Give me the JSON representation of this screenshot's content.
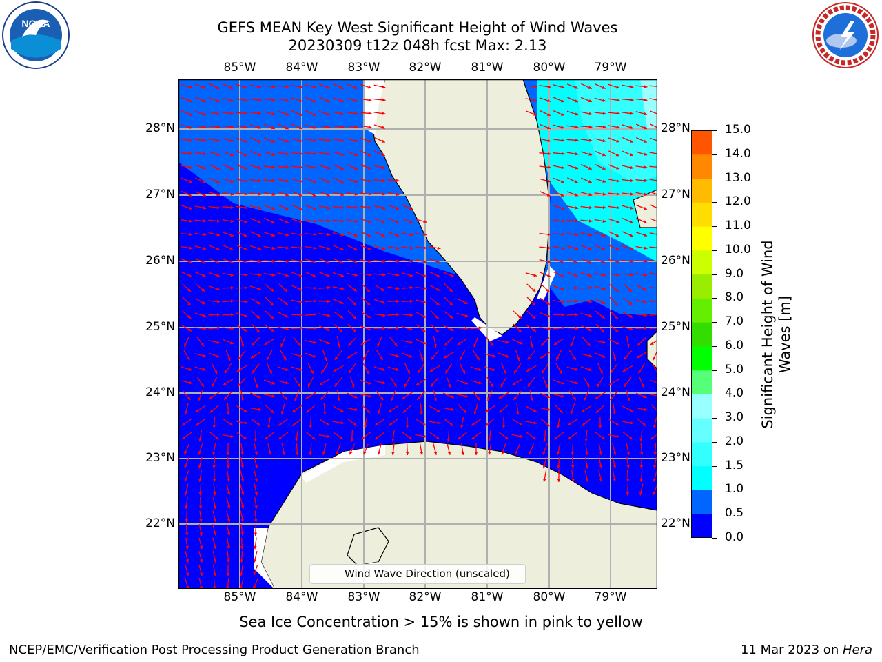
{
  "title_line1": "GEFS MEAN Key West Significant Height of Wind Waves",
  "title_line2": "20230309 t12z 048h fcst   Max: 2.13",
  "lon_labels": [
    "85°W",
    "84°W",
    "83°W",
    "82°W",
    "81°W",
    "80°W",
    "79°W"
  ],
  "lat_labels": [
    "28°N",
    "27°N",
    "26°N",
    "25°N",
    "24°N",
    "23°N",
    "22°N"
  ],
  "colorbar": {
    "label_line1": "Significant Height of Wind",
    "label_line2": "Waves [m]",
    "ticks": [
      "15.0",
      "14.0",
      "13.0",
      "12.0",
      "11.0",
      "10.0",
      "9.0",
      "8.0",
      "7.0",
      "6.0",
      "5.0",
      "4.0",
      "3.0",
      "2.0",
      "1.5",
      "1.0",
      "0.5",
      "0.0"
    ],
    "colors": [
      "#0000ff",
      "#0066ff",
      "#00ffff",
      "#33ffff",
      "#66ffff",
      "#99ffff",
      "#55ff77",
      "#00ff00",
      "#33dd00",
      "#66ee00",
      "#99ee00",
      "#ccff00",
      "#ffff00",
      "#ffdd00",
      "#ffbb00",
      "#ff8800",
      "#ff5500",
      "#ff2200",
      "#ff0000"
    ]
  },
  "colors": {
    "land": "#eeeedc",
    "arrow": "#ff0000",
    "grid": "#b0b0b0"
  },
  "legend_label": "Wind Wave Direction (unscaled)",
  "sea_ice_note": "Sea Ice Concentration > 15% is shown in pink to yellow",
  "footer_left": "NCEP/EMC/Verification Post Processing Product Generation Branch",
  "footer_date": "11 Mar 2023 on ",
  "footer_host": "Hera",
  "logos": {
    "left": "NOAA",
    "right": "NATIONAL WEATHER SERVICE"
  }
}
